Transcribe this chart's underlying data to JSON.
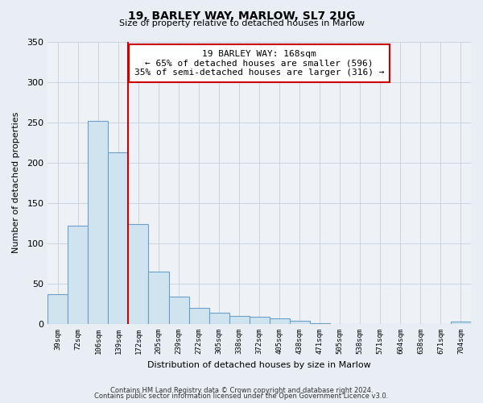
{
  "title": "19, BARLEY WAY, MARLOW, SL7 2UG",
  "subtitle": "Size of property relative to detached houses in Marlow",
  "xlabel": "Distribution of detached houses by size in Marlow",
  "ylabel": "Number of detached properties",
  "categories": [
    "39sqm",
    "72sqm",
    "106sqm",
    "139sqm",
    "172sqm",
    "205sqm",
    "239sqm",
    "272sqm",
    "305sqm",
    "338sqm",
    "372sqm",
    "405sqm",
    "438sqm",
    "471sqm",
    "505sqm",
    "538sqm",
    "571sqm",
    "604sqm",
    "638sqm",
    "671sqm",
    "704sqm"
  ],
  "values": [
    37,
    122,
    252,
    213,
    124,
    65,
    34,
    20,
    14,
    10,
    9,
    7,
    4,
    1,
    0,
    0,
    0,
    0,
    0,
    0,
    3
  ],
  "bar_facecolor": "#d0e4f0",
  "bar_edgecolor": "#6aa0c8",
  "annotation_title": "19 BARLEY WAY: 168sqm",
  "annotation_line1": "← 65% of detached houses are smaller (596)",
  "annotation_line2": "35% of semi-detached houses are larger (316) →",
  "annotation_box_facecolor": "#ffffff",
  "annotation_box_edgecolor": "#cc0000",
  "marker_line_color": "#cc0000",
  "marker_line_index": 3.5,
  "ylim": [
    0,
    350
  ],
  "yticks": [
    0,
    50,
    100,
    150,
    200,
    250,
    300,
    350
  ],
  "footer_line1": "Contains HM Land Registry data © Crown copyright and database right 2024.",
  "footer_line2": "Contains public sector information licensed under the Open Government Licence v3.0.",
  "background_color": "#e8eef4",
  "plot_background_color": "#eef2f7",
  "grid_color": "#c5d0dc"
}
